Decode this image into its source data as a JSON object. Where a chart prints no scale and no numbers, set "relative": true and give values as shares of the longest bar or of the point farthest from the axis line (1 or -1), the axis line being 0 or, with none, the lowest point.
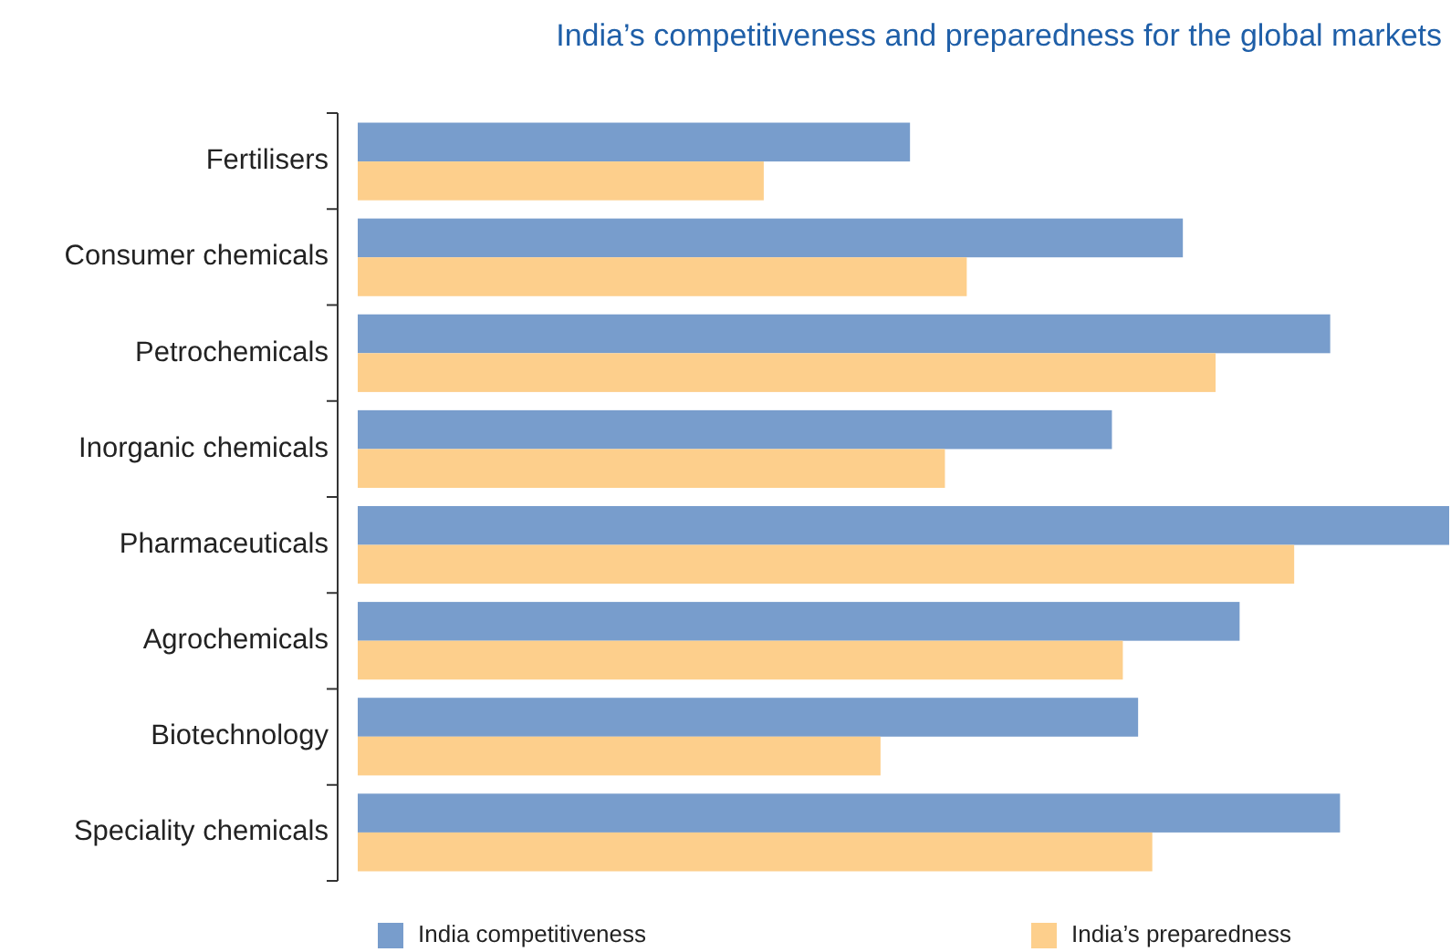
{
  "chart_data": {
    "type": "bar",
    "orientation": "horizontal",
    "relative": true,
    "title": "India’s competitiveness and preparedness for the global markets",
    "categories": [
      "Fertilisers",
      "Consumer chemicals",
      "Petrochemicals",
      "Inorganic chemicals",
      "Pharmaceuticals",
      "Agrochemicals",
      "Biotechnology",
      "Speciality chemicals"
    ],
    "series": [
      {
        "name": "India competitiveness",
        "color": "#789dcc",
        "values": [
          0.506,
          0.756,
          0.891,
          0.691,
          1,
          0.808,
          0.715,
          0.9
        ]
      },
      {
        "name": "India’s preparedness",
        "color": "#fdcf8c",
        "values": [
          0.372,
          0.558,
          0.786,
          0.538,
          0.858,
          0.701,
          0.479,
          0.728
        ]
      }
    ],
    "legend": "bottom"
  }
}
